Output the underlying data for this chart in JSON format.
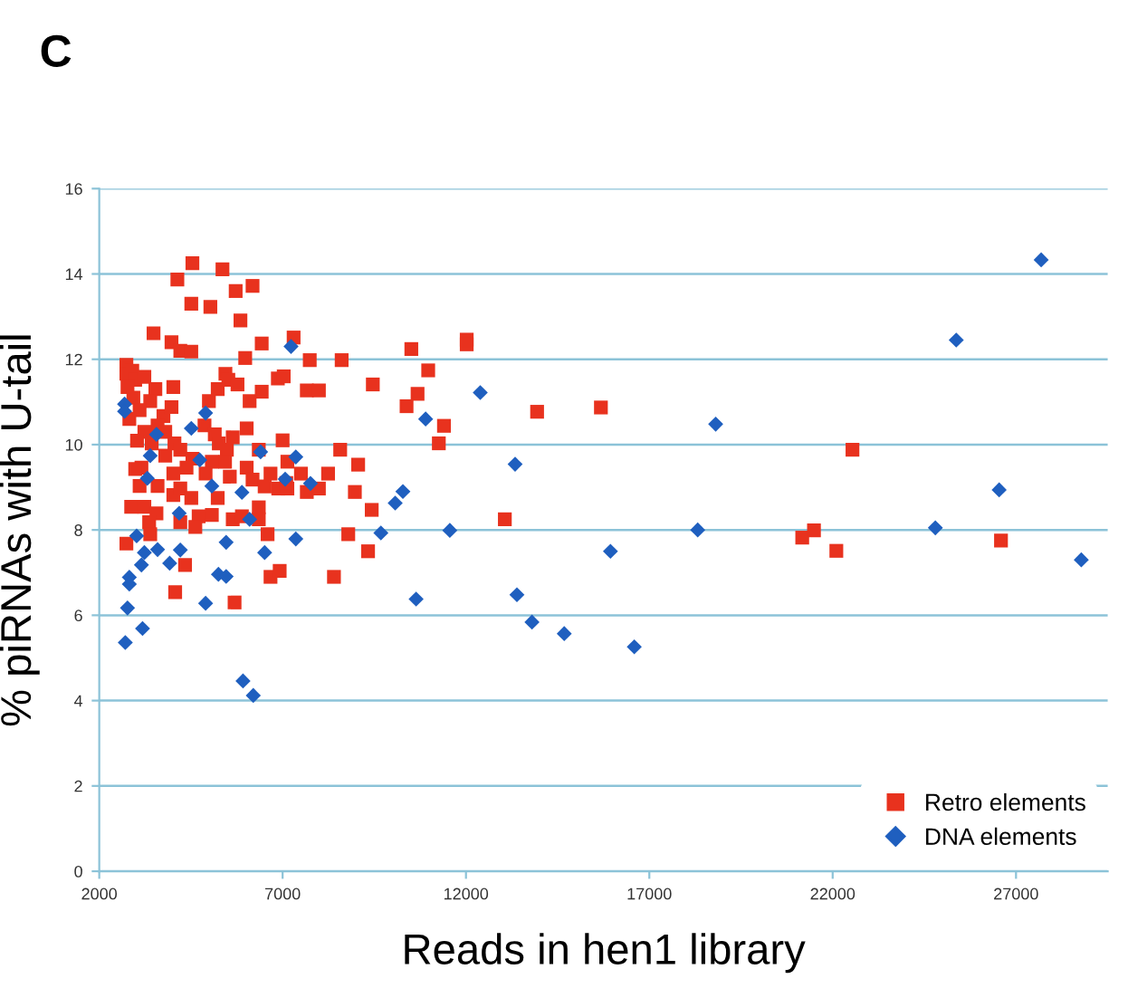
{
  "chart_data": {
    "type": "scatter",
    "xlabel": "Reads in hen1 library",
    "ylabel": "% piRNAs with U-tail",
    "annotations": [
      "C"
    ],
    "xlim": [
      2000,
      29500
    ],
    "xticks": [
      2000,
      7000,
      12000,
      17000,
      22000,
      27000
    ],
    "ylim": [
      0,
      16
    ],
    "yticks": [
      0,
      2,
      4,
      6,
      8,
      10,
      12,
      14,
      16
    ],
    "grid": "y",
    "legend": "bottom right",
    "series": [
      {
        "name": "Retro elements",
        "color": "#e8321e",
        "marker": "square",
        "x": [
          4540,
          5360,
          4130,
          6180,
          5720,
          4510,
          5030,
          5850,
          3480,
          3970,
          4210,
          4510,
          6430,
          7300,
          7740,
          8610,
          9460,
          5980,
          5440,
          5520,
          5770,
          6870,
          7030,
          7660,
          7990,
          2740,
          2740,
          2900,
          2980,
          2770,
          3230,
          3530,
          3390,
          2930,
          3100,
          2820,
          3750,
          3970,
          4020,
          3590,
          3230,
          3800,
          3030,
          3430,
          4050,
          4210,
          3800,
          4540,
          4380,
          4020,
          3590,
          3150,
          3100,
          2870,
          3230,
          2980,
          3560,
          2740,
          3360,
          3390,
          4020,
          4210,
          4210,
          4510,
          4710,
          4620,
          4340,
          4070,
          4870,
          4990,
          5150,
          5230,
          5260,
          5480,
          5430,
          5070,
          4900,
          5640,
          5560,
          5230,
          5070,
          5640,
          5690,
          5890,
          6020,
          6020,
          6180,
          6350,
          6350,
          6510,
          6100,
          6430,
          6670,
          6880,
          7000,
          7130,
          7130,
          6670,
          6920,
          7100,
          7500,
          7660,
          7990,
          8240,
          8570,
          9060,
          8970,
          9430,
          8790,
          9330,
          8400,
          6350,
          6590,
          12020,
          12020,
          10510,
          10970,
          10680,
          10380,
          11400,
          11260,
          13940,
          15680,
          22540,
          13060,
          21170,
          21490,
          22100,
          26590
        ],
        "values": [
          14.25,
          14.11,
          13.87,
          13.72,
          13.6,
          13.3,
          13.23,
          12.91,
          12.61,
          12.4,
          12.2,
          12.18,
          12.37,
          12.51,
          11.98,
          11.98,
          11.41,
          12.03,
          11.66,
          11.52,
          11.41,
          11.55,
          11.6,
          11.27,
          11.27,
          11.87,
          11.66,
          11.73,
          11.52,
          11.35,
          11.59,
          11.3,
          11.02,
          11.1,
          10.81,
          10.6,
          10.67,
          10.88,
          11.35,
          10.45,
          10.3,
          10.3,
          10.09,
          10.03,
          10.03,
          9.88,
          9.74,
          9.67,
          9.46,
          9.32,
          9.03,
          9.46,
          9.03,
          8.54,
          8.54,
          9.43,
          8.39,
          7.68,
          8.18,
          7.9,
          8.82,
          8.97,
          8.18,
          8.75,
          8.32,
          8.07,
          7.18,
          6.54,
          10.45,
          11.02,
          10.24,
          11.3,
          10.03,
          9.88,
          9.6,
          9.6,
          9.32,
          10.17,
          9.25,
          8.75,
          8.35,
          8.25,
          6.3,
          8.32,
          10.38,
          9.46,
          9.18,
          9.88,
          8.53,
          9.02,
          11.02,
          11.24,
          9.32,
          8.97,
          10.1,
          8.97,
          9.6,
          6.9,
          7.04,
          9.1,
          9.32,
          8.89,
          8.97,
          9.32,
          9.88,
          9.53,
          8.89,
          8.47,
          7.9,
          7.5,
          6.9,
          8.25,
          7.9,
          12.46,
          12.35,
          12.24,
          11.74,
          11.19,
          10.9,
          10.44,
          10.03,
          10.77,
          10.87,
          9.88,
          8.25,
          7.82,
          7.99,
          7.51,
          7.75
        ]
      },
      {
        "name": "DNA elements",
        "color": "#1f5fbf",
        "marker": "diamond",
        "x": [
          2690,
          2690,
          3560,
          3390,
          3310,
          4510,
          4900,
          4740,
          5070,
          4180,
          3020,
          3230,
          3150,
          3590,
          2820,
          2820,
          2770,
          3180,
          2710,
          3920,
          4210,
          4900,
          5250,
          5460,
          5460,
          5890,
          6100,
          6510,
          5920,
          6200,
          6400,
          7070,
          7230,
          7360,
          7360,
          7760,
          9680,
          10070,
          10280,
          10640,
          27686,
          25370,
          12390,
          18810,
          10900,
          13340,
          26540,
          11560,
          18320,
          24800,
          28780,
          15940,
          13390,
          13800,
          14680,
          16590
        ],
        "values": [
          10.95,
          10.78,
          10.24,
          9.74,
          9.21,
          10.38,
          10.74,
          9.64,
          9.03,
          8.39,
          7.86,
          7.47,
          7.18,
          7.54,
          6.89,
          6.73,
          6.17,
          5.69,
          5.36,
          7.22,
          7.53,
          6.28,
          6.96,
          7.71,
          6.91,
          8.88,
          8.25,
          7.47,
          4.46,
          4.12,
          9.83,
          9.19,
          12.3,
          9.71,
          7.79,
          9.09,
          7.93,
          8.63,
          8.9,
          6.38,
          14.33,
          12.45,
          11.22,
          10.48,
          10.6,
          9.54,
          8.94,
          7.99,
          8.0,
          8.05,
          7.3,
          7.5,
          6.48,
          5.84,
          5.57,
          5.26
        ]
      }
    ]
  }
}
